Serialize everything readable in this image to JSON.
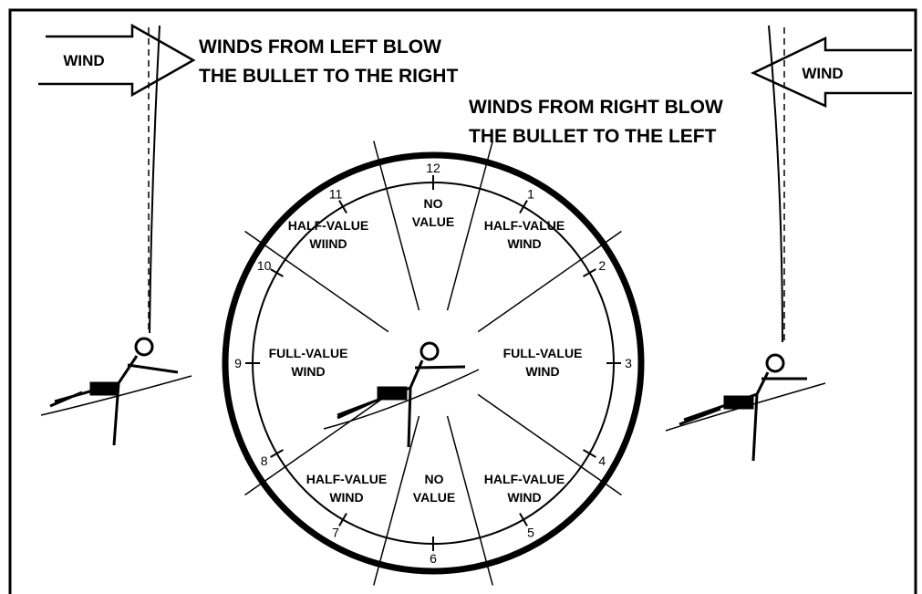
{
  "left_caption": [
    "WINDS FROM LEFT BLOW",
    "THE BULLET TO THE RIGHT"
  ],
  "right_caption": [
    "WINDS FROM RIGHT BLOW",
    "THE BULLET TO THE LEFT"
  ],
  "left_arrow": {
    "label": "WIND"
  },
  "right_arrow": {
    "label": "WIND"
  },
  "clock_numbers": [
    "12",
    "1",
    "2",
    "3",
    "4",
    "5",
    "6",
    "7",
    "8",
    "9",
    "10",
    "11"
  ],
  "zones": [
    {
      "lines": [
        "NO",
        "VALUE"
      ]
    },
    {
      "lines": [
        "HALF-VALUE",
        "WIND"
      ]
    },
    {
      "lines": [
        "FULL-VALUE",
        "WIND"
      ]
    },
    {
      "lines": [
        "HALF-VALUE",
        "WIND"
      ]
    },
    {
      "lines": [
        "NO",
        "VALUE"
      ]
    },
    {
      "lines": [
        "HALF-VALUE",
        "WIND"
      ]
    },
    {
      "lines": [
        "FULL-VALUE",
        "WIND"
      ]
    },
    {
      "lines": [
        "HALF-VALUE",
        "WIIND"
      ]
    }
  ]
}
